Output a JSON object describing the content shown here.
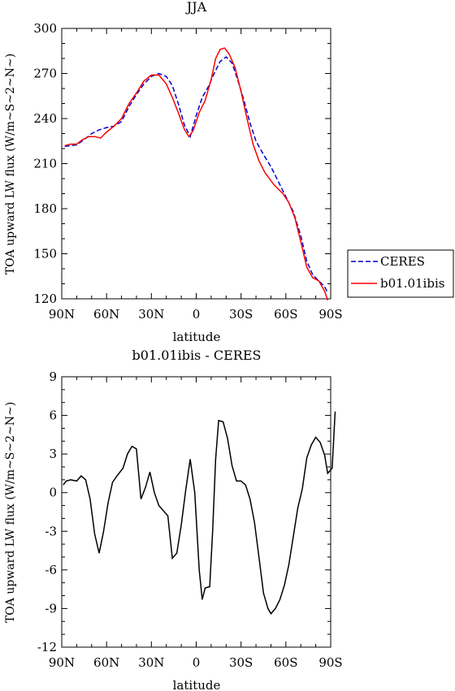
{
  "chart_data": [
    {
      "type": "line",
      "title": "JJA",
      "xlabel": "latitude",
      "ylabel": "TOA upward LW flux (W/m~S~2~N~)",
      "xlim": [
        90,
        -90
      ],
      "ylim": [
        120,
        300
      ],
      "x_ticks": [
        {
          "v": 90,
          "label": "90N"
        },
        {
          "v": 60,
          "label": "60N"
        },
        {
          "v": 30,
          "label": "30N"
        },
        {
          "v": 0,
          "label": "0"
        },
        {
          "v": -30,
          "label": "30S"
        },
        {
          "v": -60,
          "label": "60S"
        },
        {
          "v": -90,
          "label": "90S"
        }
      ],
      "y_ticks": [
        120,
        150,
        180,
        210,
        240,
        270,
        300
      ],
      "legend_position": "outside-right",
      "series": [
        {
          "name": "CERES",
          "color": "#0000cc",
          "dash": "dashed",
          "points": [
            [
              88,
              221.5
            ],
            [
              84,
              222
            ],
            [
              80,
              222.5
            ],
            [
              75,
              226
            ],
            [
              70,
              230
            ],
            [
              65,
              232.5
            ],
            [
              60,
              234
            ],
            [
              55,
              235
            ],
            [
              50,
              238
            ],
            [
              45,
              248
            ],
            [
              40,
              256
            ],
            [
              35,
              263
            ],
            [
              30,
              268
            ],
            [
              25,
              270
            ],
            [
              20,
              268
            ],
            [
              16,
              262
            ],
            [
              12,
              250
            ],
            [
              8,
              236
            ],
            [
              4,
              228
            ],
            [
              0,
              242
            ],
            [
              -4,
              254
            ],
            [
              -8,
              261
            ],
            [
              -12,
              270
            ],
            [
              -16,
              278
            ],
            [
              -20,
              281
            ],
            [
              -24,
              277
            ],
            [
              -28,
              265
            ],
            [
              -32,
              252
            ],
            [
              -36,
              237
            ],
            [
              -40,
              225
            ],
            [
              -45,
              216
            ],
            [
              -50,
              208
            ],
            [
              -55,
              198
            ],
            [
              -60,
              188
            ],
            [
              -65,
              178
            ],
            [
              -70,
              162
            ],
            [
              -74,
              145
            ],
            [
              -78,
              136
            ],
            [
              -82,
              132
            ],
            [
              -86,
              128
            ],
            [
              -88,
              124
            ]
          ]
        },
        {
          "name": "b01.01ibis",
          "color": "#ff0000",
          "dash": "solid",
          "points": [
            [
              88,
              222
            ],
            [
              84,
              223
            ],
            [
              80,
              223
            ],
            [
              76,
              226
            ],
            [
              72,
              228
            ],
            [
              68,
              228
            ],
            [
              64,
              227
            ],
            [
              60,
              231
            ],
            [
              55,
              235
            ],
            [
              50,
              240
            ],
            [
              45,
              250
            ],
            [
              40,
              257
            ],
            [
              35,
              265
            ],
            [
              30,
              269
            ],
            [
              25,
              269
            ],
            [
              20,
              263
            ],
            [
              16,
              254
            ],
            [
              12,
              244
            ],
            [
              8,
              233
            ],
            [
              5,
              228
            ],
            [
              2,
              232
            ],
            [
              -2,
              244
            ],
            [
              -6,
              252
            ],
            [
              -10,
              266
            ],
            [
              -13,
              280
            ],
            [
              -16,
              286
            ],
            [
              -19,
              287
            ],
            [
              -22,
              283
            ],
            [
              -26,
              274
            ],
            [
              -30,
              258
            ],
            [
              -34,
              240
            ],
            [
              -38,
              223
            ],
            [
              -42,
              212
            ],
            [
              -46,
              204
            ],
            [
              -52,
              196
            ],
            [
              -58,
              190
            ],
            [
              -62,
              184
            ],
            [
              -66,
              174
            ],
            [
              -70,
              158
            ],
            [
              -74,
              141
            ],
            [
              -78,
              134
            ],
            [
              -82,
              132
            ],
            [
              -86,
              125
            ],
            [
              -88,
              119
            ]
          ]
        }
      ]
    },
    {
      "type": "line",
      "title": "b01.01ibis - CERES",
      "xlabel": "latitude",
      "ylabel": "TOA upward LW flux (W/m~S~2~N~)",
      "xlim": [
        90,
        -90
      ],
      "ylim": [
        -12,
        9
      ],
      "x_ticks": [
        {
          "v": 90,
          "label": "90N"
        },
        {
          "v": 60,
          "label": "60N"
        },
        {
          "v": 30,
          "label": "30N"
        },
        {
          "v": 0,
          "label": "0"
        },
        {
          "v": -30,
          "label": "30S"
        },
        {
          "v": -60,
          "label": "60S"
        },
        {
          "v": -90,
          "label": "90S"
        }
      ],
      "y_ticks": [
        -12,
        -9,
        -6,
        -3,
        0,
        3,
        6,
        9
      ],
      "series": [
        {
          "name": "",
          "color": "#000000",
          "dash": "solid",
          "points": [
            [
              89,
              0.6
            ],
            [
              87,
              0.9
            ],
            [
              84,
              1.0
            ],
            [
              80,
              0.9
            ],
            [
              77,
              1.3
            ],
            [
              74,
              1.0
            ],
            [
              71,
              -0.5
            ],
            [
              68,
              -3.2
            ],
            [
              65,
              -4.7
            ],
            [
              62,
              -3.0
            ],
            [
              59,
              -0.8
            ],
            [
              56,
              0.8
            ],
            [
              53,
              1.3
            ],
            [
              49,
              1.9
            ],
            [
              46,
              3.0
            ],
            [
              43,
              3.6
            ],
            [
              40,
              3.4
            ],
            [
              37,
              -0.5
            ],
            [
              34,
              0.4
            ],
            [
              31,
              1.6
            ],
            [
              28,
              0.0
            ],
            [
              25,
              -1.0
            ],
            [
              22,
              -1.4
            ],
            [
              19,
              -1.8
            ],
            [
              16,
              -5.1
            ],
            [
              13,
              -4.7
            ],
            [
              10,
              -2.5
            ],
            [
              7,
              0.2
            ],
            [
              4,
              2.6
            ],
            [
              1,
              0.0
            ],
            [
              -2,
              -6.0
            ],
            [
              -4,
              -8.3
            ],
            [
              -6,
              -7.4
            ],
            [
              -9,
              -7.3
            ],
            [
              -11,
              -3.0
            ],
            [
              -13,
              2.6
            ],
            [
              -15,
              5.6
            ],
            [
              -18,
              5.5
            ],
            [
              -21,
              4.2
            ],
            [
              -24,
              2.1
            ],
            [
              -27,
              0.9
            ],
            [
              -30,
              0.9
            ],
            [
              -33,
              0.6
            ],
            [
              -36,
              -0.5
            ],
            [
              -39,
              -2.3
            ],
            [
              -42,
              -5.0
            ],
            [
              -45,
              -7.8
            ],
            [
              -48,
              -9.0
            ],
            [
              -50,
              -9.4
            ],
            [
              -53,
              -9.0
            ],
            [
              -56,
              -8.3
            ],
            [
              -59,
              -7.2
            ],
            [
              -62,
              -5.6
            ],
            [
              -65,
              -3.4
            ],
            [
              -68,
              -1.2
            ],
            [
              -71,
              0.3
            ],
            [
              -74,
              2.7
            ],
            [
              -77,
              3.7
            ],
            [
              -80,
              4.3
            ],
            [
              -83,
              3.9
            ],
            [
              -86,
              2.9
            ],
            [
              -88,
              1.5
            ],
            [
              -91,
              1.9
            ],
            [
              -93,
              6.3
            ]
          ]
        }
      ]
    }
  ]
}
